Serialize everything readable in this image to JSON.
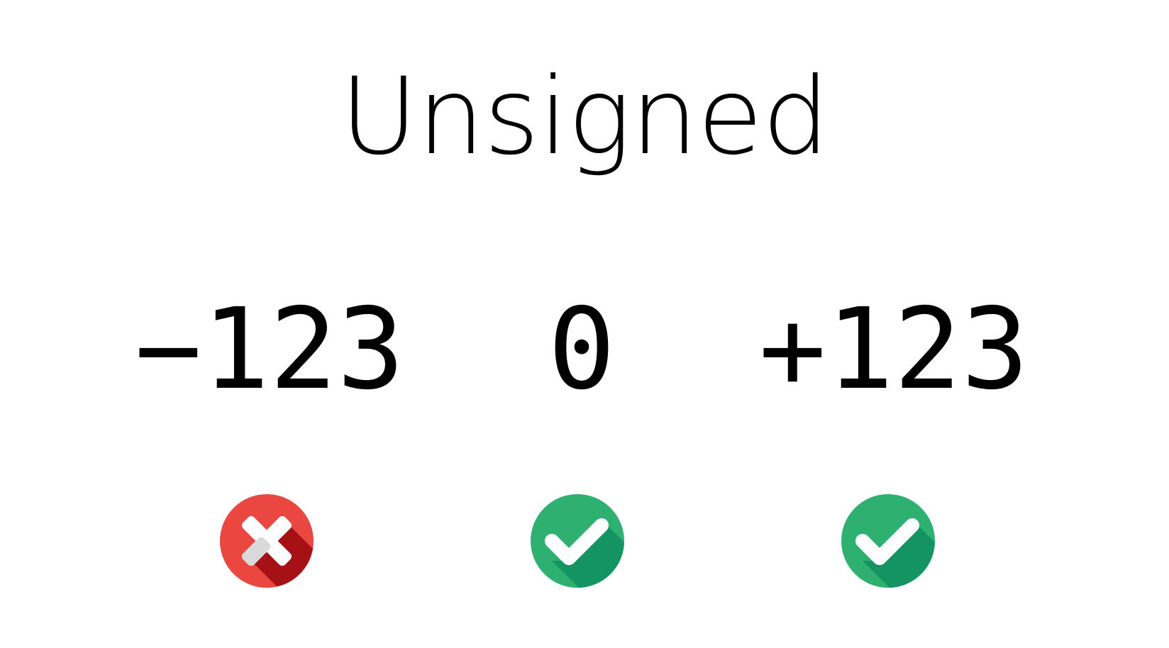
{
  "title": "Unsigned",
  "items": [
    {
      "value": "−123",
      "status": "invalid",
      "icon": "cross-icon",
      "color": "#ea4740"
    },
    {
      "value": "0",
      "status": "valid",
      "icon": "check-icon",
      "color": "#2eb070"
    },
    {
      "value": "+123",
      "status": "valid",
      "icon": "check-icon",
      "color": "#2eb070"
    }
  ]
}
